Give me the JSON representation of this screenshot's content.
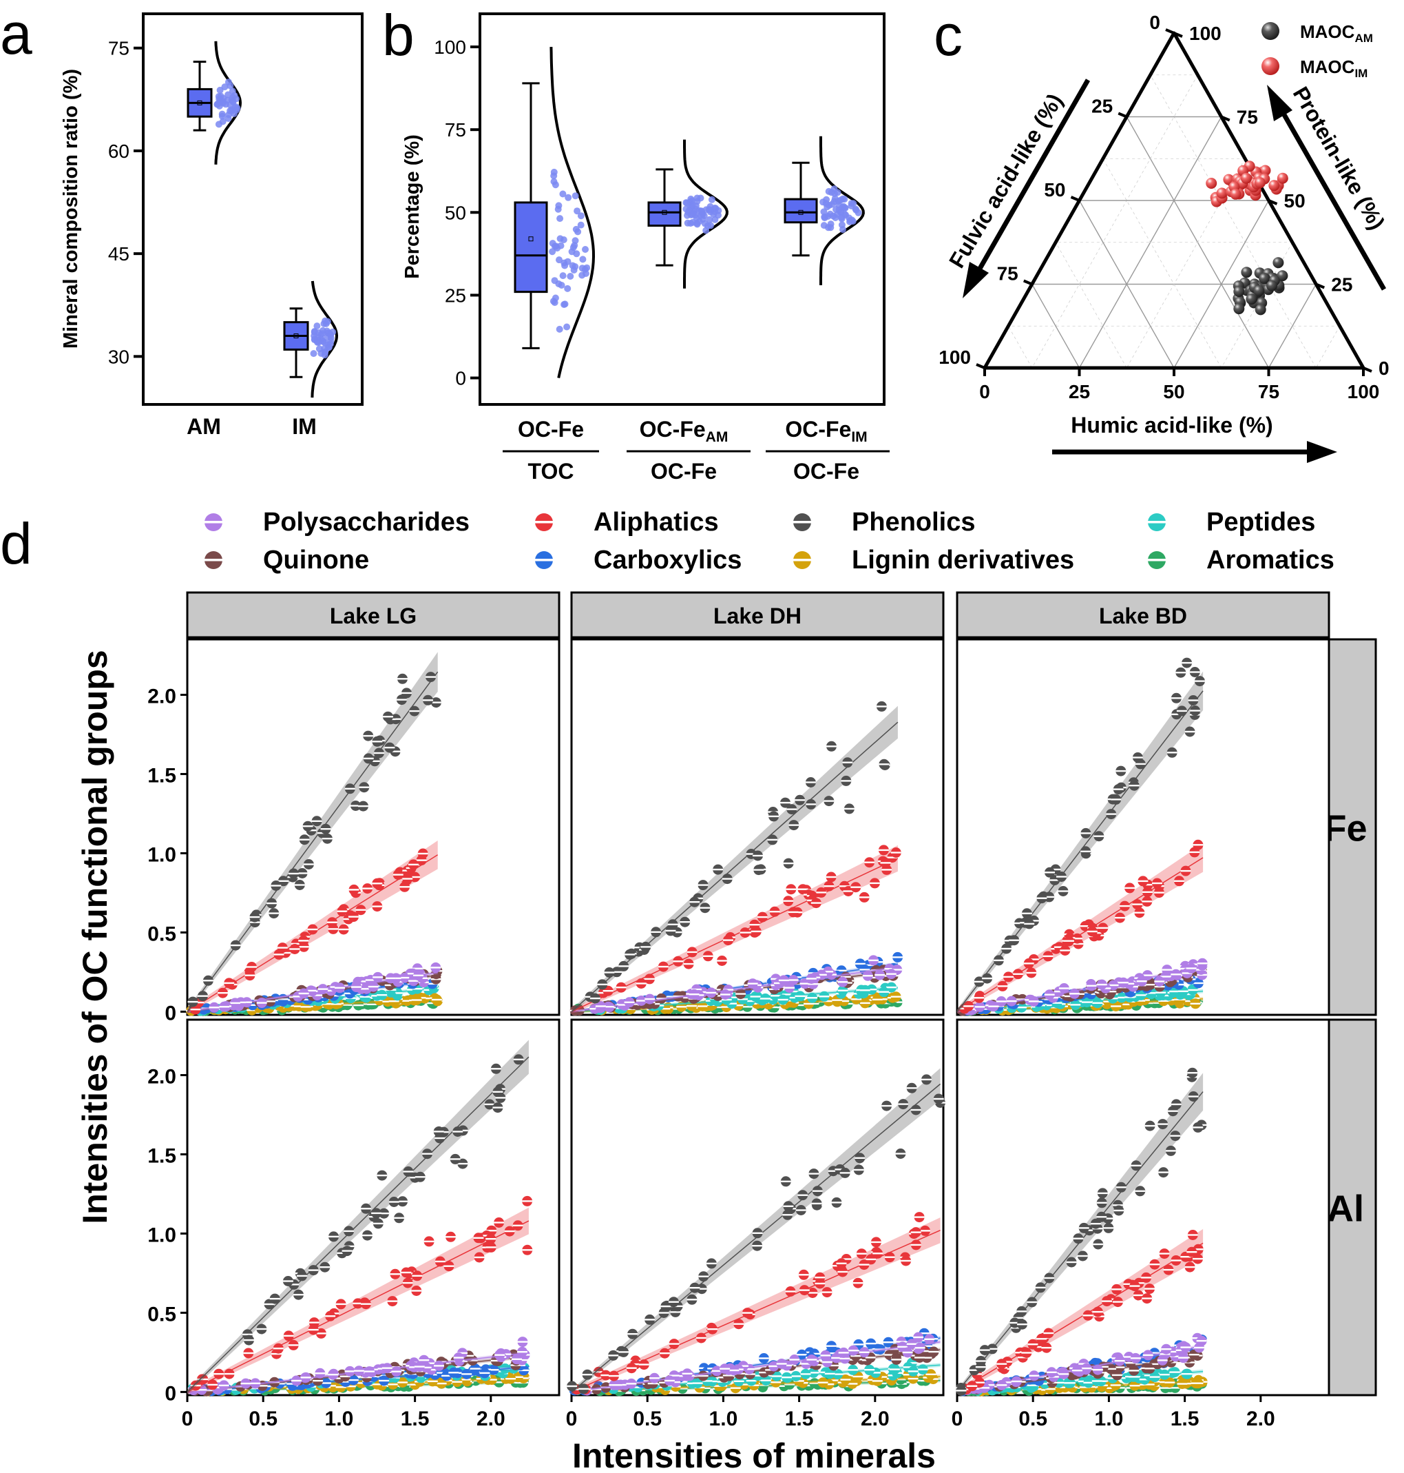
{
  "panel_letters": {
    "a": "a",
    "b": "b",
    "c": "c",
    "d": "d"
  },
  "colors": {
    "box_fill": "#5b6cf0",
    "dot": "#7a88f2",
    "strip": "#c8c8c8",
    "phenolics": "#505050",
    "aliphatics": "#e8353a",
    "polysaccharides": "#b07ee6",
    "quinone": "#7a4a4a",
    "carboxylics": "#2a6fe0",
    "lignin": "#d4a20c",
    "peptides": "#2ccbc4",
    "aromatics": "#2ea863",
    "maoc_am": "#444444",
    "maoc_im": "#e83a3a"
  },
  "chart_data": [
    {
      "id": "a",
      "type": "box",
      "ylabel": "Mineral composition ratio (%)",
      "categories": [
        "AM",
        "IM"
      ],
      "yticks": [
        "30",
        "45",
        "60",
        "75"
      ],
      "ylim": [
        23,
        80
      ],
      "boxes": [
        {
          "name": "AM",
          "min": 63,
          "q1": 65,
          "median": 67,
          "q3": 69,
          "max": 73,
          "mean": 67,
          "range": [
            58,
            76
          ],
          "pts_n": 42
        },
        {
          "name": "IM",
          "min": 27,
          "q1": 31,
          "median": 33,
          "q3": 35,
          "max": 37,
          "mean": 33,
          "range": [
            24,
            41
          ],
          "pts_n": 42
        }
      ]
    },
    {
      "id": "b",
      "type": "box",
      "ylabel": "Percentage (%)",
      "yticks": [
        "0",
        "25",
        "50",
        "75",
        "100"
      ],
      "ylim": [
        -8,
        110
      ],
      "categories": [
        {
          "num": "OC-Fe",
          "num_sub": "",
          "den": "TOC"
        },
        {
          "num": "OC-Fe",
          "num_sub": "AM",
          "den": "OC-Fe"
        },
        {
          "num": "OC-Fe",
          "num_sub": "IM",
          "den": "OC-Fe"
        }
      ],
      "boxes": [
        {
          "min": 9,
          "q1": 26,
          "median": 37,
          "q3": 53,
          "max": 89,
          "mean": 42,
          "range": [
            0,
            100
          ],
          "pts_n": 55
        },
        {
          "min": 34,
          "q1": 46,
          "median": 50,
          "q3": 53,
          "max": 63,
          "mean": 50,
          "range": [
            27,
            72
          ],
          "pts_n": 55
        },
        {
          "min": 37,
          "q1": 47,
          "median": 50,
          "q3": 54,
          "max": 65,
          "mean": 50,
          "range": [
            28,
            73
          ],
          "pts_n": 55
        }
      ]
    },
    {
      "id": "c",
      "type": "ternary",
      "bottom_axis": "Humic acid-like (%)",
      "left_axis": "Fulvic acid-like (%)",
      "right_axis": "Protein-like (%)",
      "bottom_ticks": [
        "0",
        "25",
        "50",
        "75",
        "100"
      ],
      "left_ticks": [
        "0",
        "25",
        "50",
        "75",
        "100"
      ],
      "right_ticks": [
        "0",
        "25",
        "50",
        "75",
        "100"
      ],
      "legend": [
        {
          "name": "MAOC",
          "sub": "AM"
        },
        {
          "name": "MAOC",
          "sub": "IM"
        }
      ],
      "clusters": [
        {
          "series": "MAOC_IM",
          "humic_center": 42,
          "protein_center": 55,
          "spread": [
            10,
            5
          ],
          "n": 45
        },
        {
          "series": "MAOC_AM",
          "humic_center": 60,
          "protein_center": 24,
          "spread": [
            5,
            6
          ],
          "n": 45
        }
      ]
    },
    {
      "id": "d",
      "type": "scatter-regression-grid",
      "ylabel": "Intensities of OC functional groups",
      "xlabel": "Intensities of minerals",
      "columns": [
        "Lake LG",
        "Lake DH",
        "Lake BD"
      ],
      "rows": [
        "Fe",
        "Al"
      ],
      "yticks": [
        "0",
        "0.5",
        "1.0",
        "1.5",
        "2.0"
      ],
      "ylim": [
        -0.02,
        2.35
      ],
      "xticks": [
        "0",
        "0.5",
        "1.0",
        "1.5",
        "2.0"
      ],
      "xlim": [
        0,
        2.45
      ],
      "legend": [
        "Polysaccharides",
        "Aliphatics",
        "Phenolics",
        "Peptides",
        "Quinone",
        "Carboxylics",
        "Lignin derivatives",
        "Aromatics"
      ],
      "panels": [
        {
          "row": "Fe",
          "col": "Lake LG",
          "xmax": 1.65,
          "slopes": {
            "Phenolics": 1.3,
            "Aliphatics": 0.6,
            "Polysaccharides": 0.15,
            "Quinone": 0.14,
            "Carboxylics": 0.12,
            "Peptides": 0.09,
            "Lignin derivatives": 0.05,
            "Aromatics": 0.04
          }
        },
        {
          "row": "Fe",
          "col": "Lake DH",
          "xmax": 2.15,
          "slopes": {
            "Phenolics": 0.85,
            "Aliphatics": 0.45,
            "Polysaccharides": 0.13,
            "Quinone": 0.12,
            "Carboxylics": 0.14,
            "Peptides": 0.07,
            "Lignin derivatives": 0.04,
            "Aromatics": 0.03
          }
        },
        {
          "row": "Fe",
          "col": "Lake BD",
          "xmax": 1.62,
          "slopes": {
            "Phenolics": 1.25,
            "Aliphatics": 0.6,
            "Polysaccharides": 0.17,
            "Quinone": 0.15,
            "Carboxylics": 0.13,
            "Peptides": 0.08,
            "Lignin derivatives": 0.05,
            "Aromatics": 0.04
          }
        },
        {
          "row": "Al",
          "col": "Lake LG",
          "xmax": 2.25,
          "slopes": {
            "Phenolics": 0.94,
            "Aliphatics": 0.48,
            "Polysaccharides": 0.11,
            "Quinone": 0.1,
            "Carboxylics": 0.07,
            "Peptides": 0.07,
            "Lignin derivatives": 0.04,
            "Aromatics": 0.03
          }
        },
        {
          "row": "Al",
          "col": "Lake DH",
          "xmax": 2.43,
          "slopes": {
            "Phenolics": 0.8,
            "Aliphatics": 0.42,
            "Polysaccharides": 0.13,
            "Quinone": 0.11,
            "Carboxylics": 0.14,
            "Peptides": 0.07,
            "Lignin derivatives": 0.04,
            "Aromatics": 0.03
          }
        },
        {
          "row": "Al",
          "col": "Lake BD",
          "xmax": 1.62,
          "slopes": {
            "Phenolics": 1.17,
            "Aliphatics": 0.58,
            "Polysaccharides": 0.18,
            "Quinone": 0.14,
            "Carboxylics": 0.17,
            "Peptides": 0.08,
            "Lignin derivatives": 0.04,
            "Aromatics": 0.03
          }
        }
      ]
    }
  ]
}
